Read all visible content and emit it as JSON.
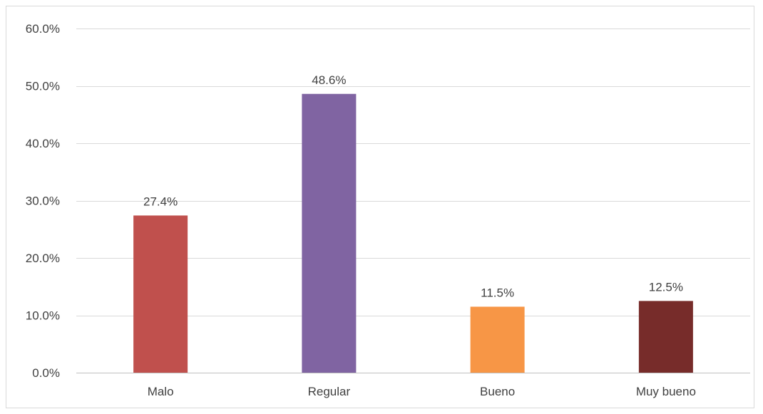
{
  "chart_data": {
    "type": "bar",
    "categories": [
      "Malo",
      "Regular",
      "Bueno",
      "Muy bueno"
    ],
    "values": [
      27.4,
      48.6,
      11.5,
      12.5
    ],
    "data_labels": [
      "27.4%",
      "48.6%",
      "11.5%",
      "12.5%"
    ],
    "colors": [
      "#c0504d",
      "#8064a2",
      "#f79646",
      "#772c2a"
    ],
    "ylim": [
      0,
      60
    ],
    "yticks": [
      0,
      10,
      20,
      30,
      40,
      50,
      60
    ],
    "ytick_labels": [
      "0.0%",
      "10.0%",
      "20.0%",
      "30.0%",
      "40.0%",
      "50.0%",
      "60.0%"
    ],
    "title": "",
    "xlabel": "",
    "ylabel": "",
    "grid": true,
    "legend": "none"
  }
}
